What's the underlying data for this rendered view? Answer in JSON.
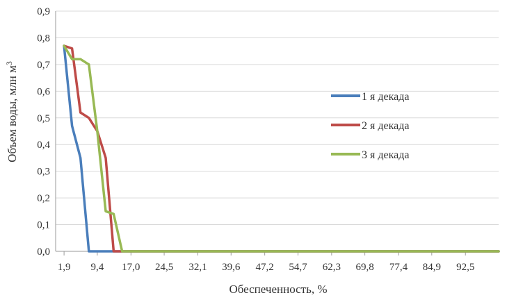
{
  "chart_data": {
    "type": "line",
    "xlabel": "Обеспеченность, %",
    "ylabel": "Объем воды, млн м",
    "ylabel_superscript": "3",
    "ylim": [
      0,
      0.9
    ],
    "yticks": [
      "0,0",
      "0,1",
      "0,2",
      "0,3",
      "0,4",
      "0,5",
      "0,6",
      "0,7",
      "0,8",
      "0,9"
    ],
    "xlim": [
      0,
      100
    ],
    "xtick_values": [
      1.9,
      9.4,
      17.0,
      24.5,
      32.1,
      39.6,
      47.2,
      54.7,
      62.3,
      69.8,
      77.4,
      84.9,
      92.5
    ],
    "xticks": [
      "1,9",
      "9,4",
      "17,0",
      "24,5",
      "32,1",
      "39,6",
      "47,2",
      "54,7",
      "62,3",
      "69,8",
      "77,4",
      "84,9",
      "92,5"
    ],
    "grid": "horizontal",
    "legend_position": "right",
    "series": [
      {
        "name": "1 я декада",
        "color": "#4A7EBB",
        "x": [
          1.9,
          3.7,
          5.6,
          7.5,
          9.4,
          11.3,
          13.1,
          100
        ],
        "y": [
          0.77,
          0.47,
          0.35,
          0.0,
          0.0,
          0.0,
          0.0,
          0.0
        ]
      },
      {
        "name": "2 я декада",
        "color": "#BE4B48",
        "x": [
          1.9,
          3.7,
          5.6,
          7.5,
          9.4,
          11.3,
          13.1,
          100
        ],
        "y": [
          0.77,
          0.76,
          0.52,
          0.5,
          0.45,
          0.35,
          0.0,
          0.0
        ]
      },
      {
        "name": "3 я декада",
        "color": "#98B954",
        "x": [
          1.9,
          3.7,
          5.6,
          7.5,
          9.4,
          11.3,
          13.1,
          15.0,
          100
        ],
        "y": [
          0.77,
          0.72,
          0.72,
          0.7,
          0.45,
          0.15,
          0.14,
          0.0,
          0.0
        ]
      }
    ]
  }
}
